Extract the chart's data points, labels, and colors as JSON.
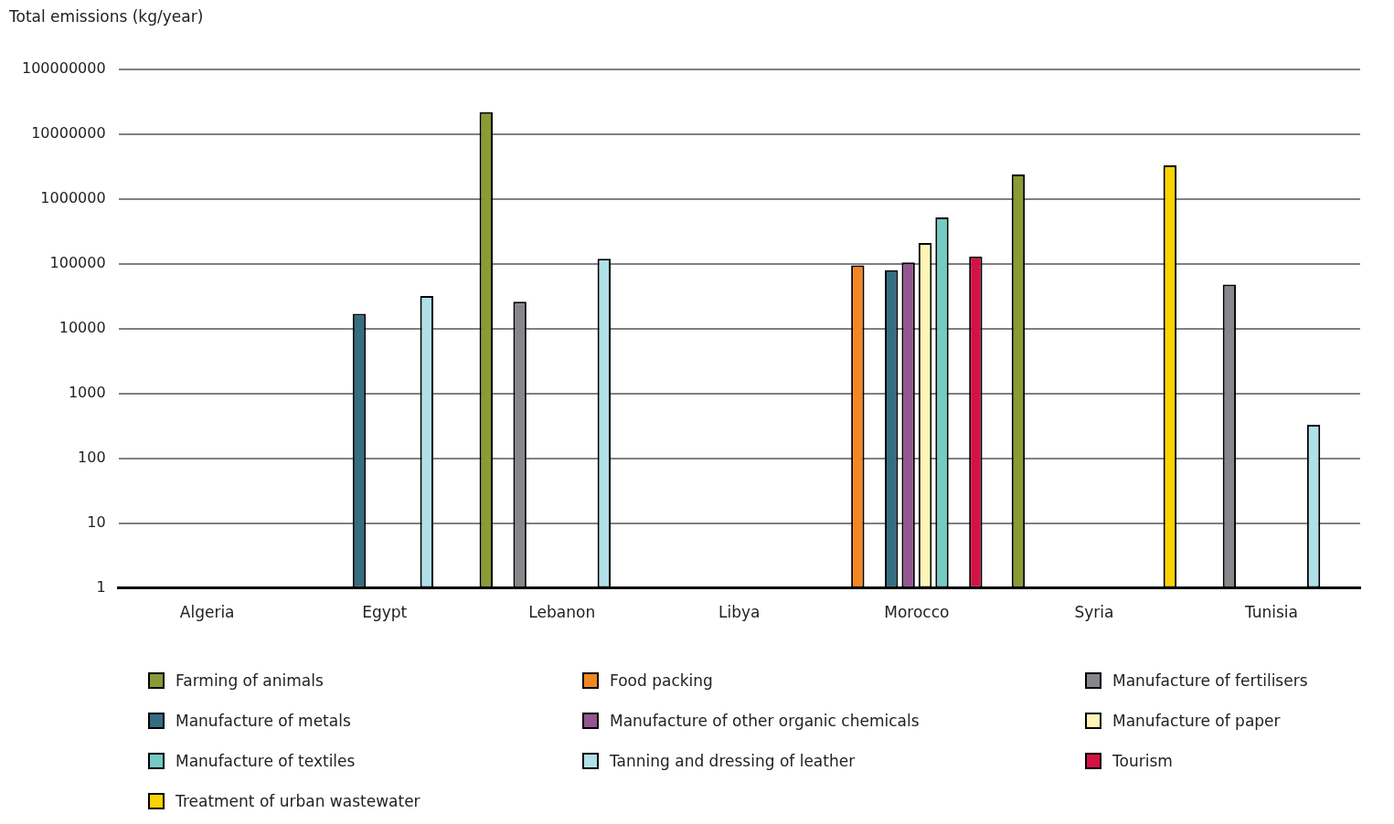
{
  "chart_data": {
    "type": "bar",
    "ylabel": "Total emissions (kg/year)",
    "categories": [
      "Algeria",
      "Egypt",
      "Lebanon",
      "Libya",
      "Morocco",
      "Syria",
      "Tunisia"
    ],
    "log": "y",
    "ylim": [
      1,
      100000000
    ],
    "yticks": [
      1,
      10,
      100,
      1000,
      10000,
      100000,
      1000000,
      10000000,
      100000000
    ],
    "grid": "y",
    "legend": "bottom",
    "series": [
      {
        "name": "Farming of animals",
        "color": "#8a9b35",
        "values": [
          null,
          null,
          22000000,
          null,
          null,
          2400000,
          null
        ]
      },
      {
        "name": "Food packing",
        "color": "#f28721",
        "values": [
          null,
          null,
          null,
          null,
          95000,
          null,
          null
        ]
      },
      {
        "name": "Manufacture of fertilisers",
        "color": "#86878b",
        "values": [
          null,
          null,
          26000,
          null,
          null,
          null,
          48000
        ]
      },
      {
        "name": "Manufacture of metals",
        "color": "#346e80",
        "values": [
          null,
          17000,
          null,
          null,
          80000,
          null,
          null
        ]
      },
      {
        "name": "Manufacture of other organic chemicals",
        "color": "#955590",
        "values": [
          null,
          null,
          null,
          null,
          105000,
          null,
          null
        ]
      },
      {
        "name": "Manufacture of paper",
        "color": "#fdf6b6",
        "values": [
          null,
          null,
          null,
          null,
          210000,
          null,
          null
        ]
      },
      {
        "name": "Manufacture of textiles",
        "color": "#74cbc4",
        "values": [
          null,
          null,
          null,
          null,
          520000,
          null,
          null
        ]
      },
      {
        "name": "Tanning and dressing of leather",
        "color": "#b0e0e8",
        "values": [
          null,
          32000,
          120000,
          null,
          null,
          null,
          330
        ]
      },
      {
        "name": "Tourism",
        "color": "#d31245",
        "values": [
          null,
          null,
          null,
          null,
          130000,
          null,
          null
        ]
      },
      {
        "name": "Treatment of urban wastewater",
        "color": "#fbd300",
        "values": [
          null,
          null,
          null,
          null,
          null,
          3300000,
          null
        ]
      }
    ]
  }
}
